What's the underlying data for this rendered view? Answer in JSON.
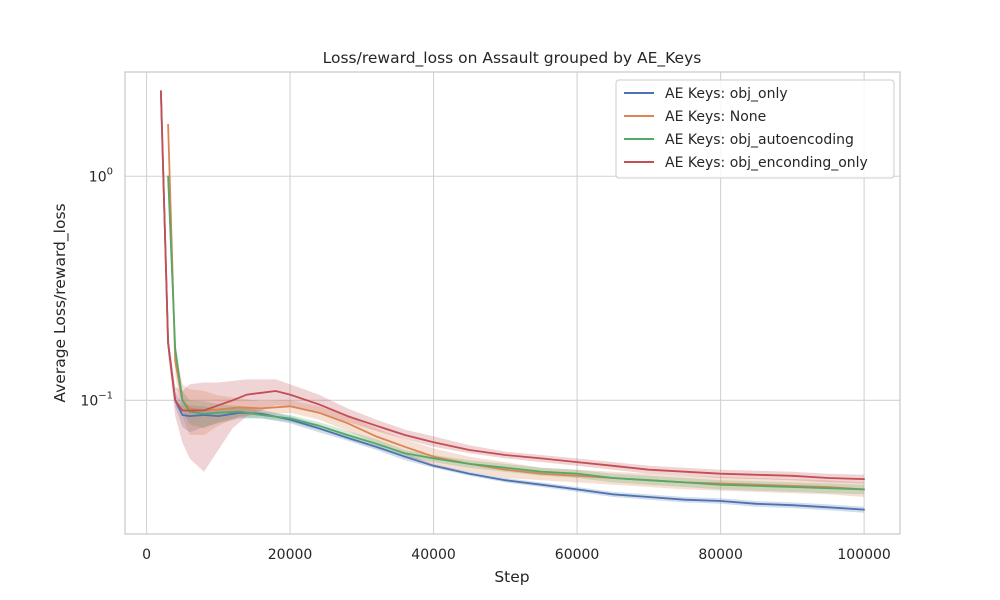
{
  "chart_data": {
    "type": "line",
    "title": "Loss/reward_loss on Assault grouped by AE_Keys",
    "xlabel": "Step",
    "ylabel": "Average Loss/reward_loss",
    "xlim": [
      -3000,
      105000
    ],
    "ylim": [
      0.0253,
      2.92
    ],
    "yscale": "log",
    "grid": true,
    "legend_position": "top-right",
    "x_ticks": [
      0,
      20000,
      40000,
      60000,
      80000,
      100000
    ],
    "x_tick_labels": [
      "0",
      "20000",
      "40000",
      "60000",
      "80000",
      "100000"
    ],
    "y_ticks": [
      {
        "value": 1.0,
        "base": "10",
        "exp": "0"
      },
      {
        "value": 0.1,
        "base": "10",
        "exp": "−1"
      }
    ],
    "colors": {
      "background": "#ffffff",
      "grid": "#d3d3d3",
      "spine": "#c8c8c8",
      "text": "#262626"
    },
    "series": [
      {
        "name": "AE Keys: obj_only",
        "color": "#4c72b0",
        "x": [
          2000,
          3000,
          4000,
          5000,
          6000,
          8000,
          10000,
          13000,
          16000,
          20000,
          24000,
          28000,
          32000,
          36000,
          40000,
          45000,
          50000,
          55000,
          60000,
          65000,
          70000,
          75000,
          80000,
          85000,
          90000,
          95000,
          100000
        ],
        "y": [
          2.4,
          0.18,
          0.1,
          0.086,
          0.085,
          0.086,
          0.085,
          0.088,
          0.087,
          0.082,
          0.075,
          0.068,
          0.062,
          0.056,
          0.051,
          0.047,
          0.044,
          0.042,
          0.04,
          0.038,
          0.037,
          0.036,
          0.0355,
          0.0345,
          0.034,
          0.0333,
          0.0325
        ],
        "lower": [
          2.4,
          0.17,
          0.094,
          0.076,
          0.072,
          0.076,
          0.079,
          0.083,
          0.083,
          0.079,
          0.072,
          0.066,
          0.06,
          0.054,
          0.05,
          0.046,
          0.043,
          0.041,
          0.039,
          0.037,
          0.036,
          0.035,
          0.0345,
          0.0335,
          0.033,
          0.0323,
          0.0315
        ],
        "upper": [
          2.4,
          0.19,
          0.108,
          0.096,
          0.095,
          0.094,
          0.091,
          0.093,
          0.091,
          0.085,
          0.078,
          0.07,
          0.064,
          0.058,
          0.052,
          0.048,
          0.045,
          0.043,
          0.041,
          0.039,
          0.038,
          0.037,
          0.0365,
          0.0355,
          0.035,
          0.0343,
          0.0335
        ]
      },
      {
        "name": "AE Keys: None",
        "color": "#dd8452",
        "x": [
          3000,
          4000,
          5000,
          6000,
          8000,
          10000,
          13000,
          16000,
          20000,
          24000,
          28000,
          32000,
          36000,
          40000,
          45000,
          50000,
          55000,
          60000,
          65000,
          70000,
          75000,
          80000,
          85000,
          90000,
          95000,
          100000
        ],
        "y": [
          1.7,
          0.15,
          0.1,
          0.092,
          0.09,
          0.091,
          0.093,
          0.092,
          0.094,
          0.088,
          0.079,
          0.069,
          0.062,
          0.056,
          0.052,
          0.049,
          0.047,
          0.046,
          0.045,
          0.044,
          0.043,
          0.0425,
          0.042,
          0.0415,
          0.041,
          0.04
        ],
        "lower": [
          1.7,
          0.13,
          0.085,
          0.07,
          0.07,
          0.077,
          0.085,
          0.086,
          0.088,
          0.082,
          0.073,
          0.064,
          0.057,
          0.051,
          0.048,
          0.045,
          0.044,
          0.043,
          0.042,
          0.041,
          0.04,
          0.0395,
          0.039,
          0.0385,
          0.038,
          0.037
        ],
        "upper": [
          1.7,
          0.17,
          0.118,
          0.112,
          0.11,
          0.105,
          0.102,
          0.099,
          0.1,
          0.094,
          0.085,
          0.075,
          0.067,
          0.061,
          0.056,
          0.053,
          0.05,
          0.049,
          0.048,
          0.047,
          0.046,
          0.0455,
          0.045,
          0.0445,
          0.044,
          0.043
        ]
      },
      {
        "name": "AE Keys: obj_autoencoding",
        "color": "#55a868",
        "x": [
          3000,
          4000,
          5000,
          6000,
          8000,
          10000,
          13000,
          16000,
          20000,
          24000,
          28000,
          32000,
          36000,
          40000,
          45000,
          50000,
          55000,
          60000,
          65000,
          70000,
          75000,
          80000,
          85000,
          90000,
          95000,
          100000
        ],
        "y": [
          1.0,
          0.17,
          0.1,
          0.089,
          0.087,
          0.088,
          0.089,
          0.086,
          0.083,
          0.077,
          0.07,
          0.064,
          0.058,
          0.055,
          0.052,
          0.05,
          0.048,
          0.047,
          0.045,
          0.044,
          0.043,
          0.042,
          0.0415,
          0.041,
          0.0405,
          0.04
        ],
        "lower": [
          1.0,
          0.155,
          0.09,
          0.078,
          0.075,
          0.08,
          0.084,
          0.083,
          0.08,
          0.074,
          0.067,
          0.061,
          0.056,
          0.053,
          0.05,
          0.048,
          0.046,
          0.045,
          0.043,
          0.042,
          0.041,
          0.04,
          0.0395,
          0.039,
          0.0385,
          0.038
        ],
        "upper": [
          1.0,
          0.185,
          0.11,
          0.1,
          0.099,
          0.096,
          0.094,
          0.089,
          0.086,
          0.08,
          0.073,
          0.067,
          0.06,
          0.057,
          0.054,
          0.052,
          0.05,
          0.049,
          0.047,
          0.046,
          0.045,
          0.044,
          0.0435,
          0.043,
          0.0425,
          0.042
        ]
      },
      {
        "name": "AE Keys: obj_enconding_only",
        "color": "#c44e52",
        "x": [
          2000,
          3000,
          4000,
          5000,
          6000,
          8000,
          10000,
          12000,
          14000,
          16000,
          18000,
          20000,
          24000,
          28000,
          32000,
          36000,
          40000,
          45000,
          50000,
          55000,
          60000,
          65000,
          70000,
          75000,
          80000,
          85000,
          90000,
          95000,
          100000
        ],
        "y": [
          2.4,
          0.18,
          0.1,
          0.09,
          0.09,
          0.09,
          0.095,
          0.1,
          0.106,
          0.108,
          0.11,
          0.106,
          0.096,
          0.085,
          0.077,
          0.07,
          0.065,
          0.06,
          0.057,
          0.055,
          0.053,
          0.051,
          0.049,
          0.048,
          0.047,
          0.0465,
          0.046,
          0.045,
          0.0445
        ],
        "lower": [
          2.4,
          0.16,
          0.085,
          0.065,
          0.055,
          0.048,
          0.06,
          0.075,
          0.085,
          0.09,
          0.095,
          0.094,
          0.088,
          0.08,
          0.073,
          0.067,
          0.062,
          0.058,
          0.055,
          0.053,
          0.051,
          0.049,
          0.047,
          0.046,
          0.045,
          0.0445,
          0.044,
          0.043,
          0.0425
        ],
        "upper": [
          2.4,
          0.2,
          0.115,
          0.11,
          0.118,
          0.12,
          0.12,
          0.122,
          0.124,
          0.124,
          0.124,
          0.118,
          0.106,
          0.092,
          0.082,
          0.074,
          0.069,
          0.063,
          0.059,
          0.057,
          0.055,
          0.053,
          0.051,
          0.05,
          0.049,
          0.0485,
          0.048,
          0.047,
          0.0465
        ]
      }
    ]
  }
}
